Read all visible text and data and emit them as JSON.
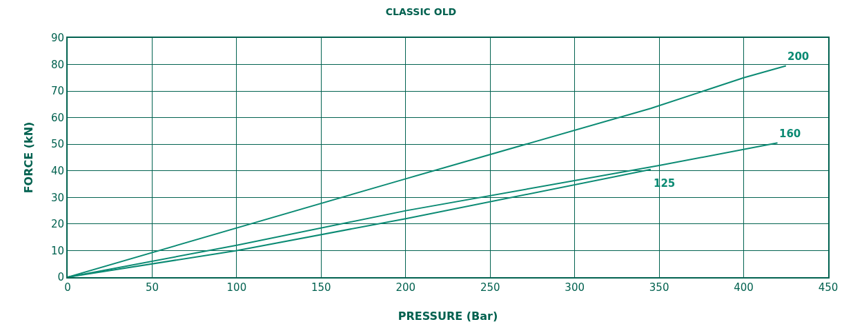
{
  "chart_data": {
    "type": "line",
    "title": "CLASSIC OLD",
    "xlabel": "PRESSURE (Bar)",
    "ylabel": "FORCE (kN)",
    "series": [
      {
        "name": "200",
        "color": "#0a8a73",
        "x": [
          0,
          200,
          345,
          400,
          425
        ],
        "values": [
          0,
          37,
          63.5,
          75,
          79.5
        ]
      },
      {
        "name": "160",
        "color": "#0a8a73",
        "x": [
          0,
          100,
          200,
          350,
          420
        ],
        "values": [
          0,
          12,
          25,
          42,
          50.5
        ]
      },
      {
        "name": "125",
        "color": "#0a8a73",
        "x": [
          0,
          100,
          200,
          345
        ],
        "values": [
          0,
          10,
          22,
          40.5
        ]
      }
    ],
    "xlim": [
      0,
      450
    ],
    "xticks": [
      0,
      50,
      100,
      150,
      200,
      250,
      300,
      350,
      400,
      450
    ],
    "ylim": [
      0,
      90
    ],
    "yticks": [
      0,
      10,
      20,
      30,
      40,
      50,
      60,
      70,
      80,
      90
    ],
    "grid": true,
    "legend": false,
    "marker": "none",
    "line_style": "solid"
  }
}
